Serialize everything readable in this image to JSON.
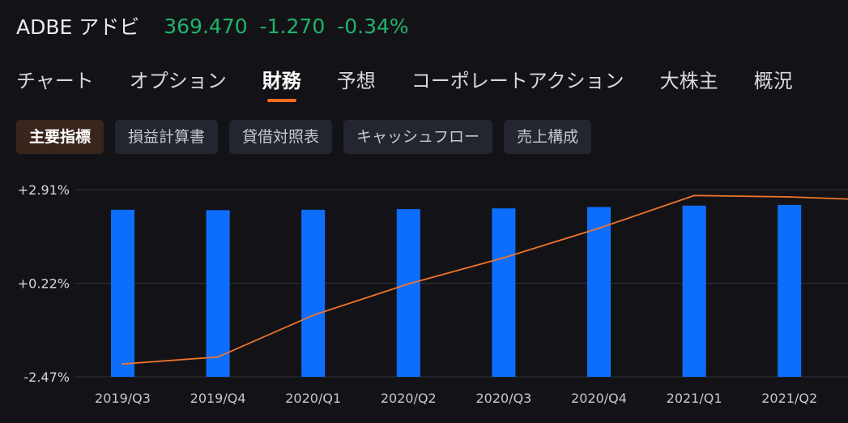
{
  "header": {
    "ticker": "ADBE アドビ",
    "price": "369.470",
    "change": "-1.270",
    "change_pct": "-0.34%",
    "quote_color": "#1fb36a"
  },
  "tabs": [
    {
      "label": "チャート",
      "active": false
    },
    {
      "label": "オプション",
      "active": false
    },
    {
      "label": "財務",
      "active": true
    },
    {
      "label": "予想",
      "active": false
    },
    {
      "label": "コーポレートアクション",
      "active": false
    },
    {
      "label": "大株主",
      "active": false
    },
    {
      "label": "概況",
      "active": false
    }
  ],
  "subtabs": [
    {
      "label": "主要指標",
      "active": true
    },
    {
      "label": "損益計算書",
      "active": false
    },
    {
      "label": "貸借対照表",
      "active": false
    },
    {
      "label": "キャッシュフロー",
      "active": false
    },
    {
      "label": "売上構成",
      "active": false
    }
  ],
  "colors": {
    "accent": "#ff6d1f",
    "bar": "#0d6efd",
    "line": "#f0742a"
  },
  "chart_data": {
    "type": "bar",
    "categories": [
      "2019/Q3",
      "2019/Q4",
      "2020/Q1",
      "2020/Q2",
      "2020/Q3",
      "2020/Q4",
      "2021/Q1",
      "2021/Q2"
    ],
    "y_ticks": [
      "+2.91%",
      "+0.22%",
      "-2.47%"
    ],
    "y_tick_values": [
      2.91,
      0.22,
      -2.47
    ],
    "ylim": [
      -2.47,
      2.91
    ],
    "series": [
      {
        "type": "bar",
        "values": [
          2.33,
          2.32,
          2.33,
          2.35,
          2.37,
          2.41,
          2.45,
          2.47
        ]
      },
      {
        "type": "line",
        "values": [
          -2.1,
          -1.9,
          -0.7,
          0.2,
          0.95,
          1.8,
          2.74,
          2.7
        ],
        "extends_to": 2.64
      }
    ],
    "grid": true
  }
}
